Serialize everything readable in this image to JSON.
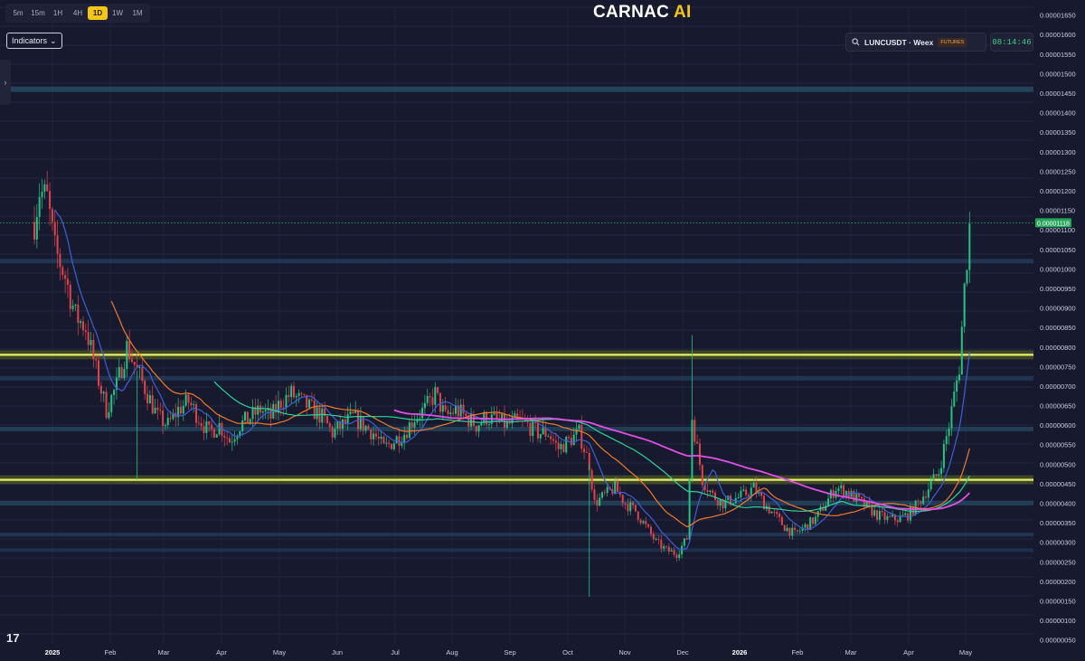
{
  "toolbar": {
    "timeframes": [
      "5m",
      "15m",
      "1H",
      "4H",
      "1D",
      "1W",
      "1M"
    ],
    "active": "1D",
    "indicators_label": "Indicators"
  },
  "brand": {
    "name": "CARNAC",
    "suffix": "AI"
  },
  "symbol": {
    "name": "LUNCUSDT · Weex",
    "badge": "FUTURES"
  },
  "clock": "08:14:46",
  "chart_data": {
    "type": "candlestick",
    "y_axis_labels": [
      "0.00001650",
      "0.00001600",
      "0.00001550",
      "0.00001500",
      "0.00001450",
      "0.00001400",
      "0.00001350",
      "0.00001300",
      "0.00001250",
      "0.00001200",
      "0.00001150",
      "0.00001100",
      "0.00001050",
      "0.00001000",
      "0.00000950",
      "0.00000900",
      "0.00000850",
      "0.00000800",
      "0.00000750",
      "0.00000700",
      "0.00000650",
      "0.00000600",
      "0.00000550",
      "0.00000500",
      "0.00000450",
      "0.00000400",
      "0.00000350",
      "0.00000300",
      "0.00000250",
      "0.00000200",
      "0.00000150",
      "0.00000100",
      "0.00000050"
    ],
    "x_axis_labels": [
      "2025",
      "Feb",
      "Mar",
      "Apr",
      "May",
      "Jun",
      "Jul",
      "Aug",
      "Sep",
      "Oct",
      "Nov",
      "Dec",
      "2026",
      "Feb",
      "Mar",
      "Apr",
      "May"
    ],
    "last_price": "0.00001118",
    "last_price_value": 1.118e-05,
    "ylim": [
      4e-07,
      1.67e-05
    ],
    "support_resistance_levels": [
      7.8e-06,
      4.6e-06
    ],
    "price_path": [
      [
        0,
        1.12e-05
      ],
      [
        2,
        1.2e-05
      ],
      [
        5,
        1.18e-05
      ],
      [
        8,
        1.05e-05
      ],
      [
        12,
        9.8e-06
      ],
      [
        16,
        8.8e-06
      ],
      [
        20,
        8.5e-06
      ],
      [
        24,
        7.4e-06
      ],
      [
        28,
        6.4e-06
      ],
      [
        32,
        7e-06
      ],
      [
        36,
        8e-06
      ],
      [
        40,
        7.4e-06
      ],
      [
        44,
        6.8e-06
      ],
      [
        48,
        6.2e-06
      ],
      [
        52,
        6e-06
      ],
      [
        56,
        6.4e-06
      ],
      [
        60,
        6.6e-06
      ],
      [
        64,
        6.2e-06
      ],
      [
        68,
        5.8e-06
      ],
      [
        72,
        6e-06
      ],
      [
        76,
        5.6e-06
      ],
      [
        80,
        6e-06
      ],
      [
        84,
        6.2e-06
      ],
      [
        88,
        6.4e-06
      ],
      [
        92,
        6.2e-06
      ],
      [
        96,
        6.6e-06
      ],
      [
        100,
        6.8e-06
      ],
      [
        104,
        6.6e-06
      ],
      [
        108,
        6.4e-06
      ],
      [
        112,
        6.2e-06
      ],
      [
        116,
        5.8e-06
      ],
      [
        120,
        6e-06
      ],
      [
        124,
        6.2e-06
      ],
      [
        128,
        6e-06
      ],
      [
        132,
        5.8e-06
      ],
      [
        136,
        5.4e-06
      ],
      [
        140,
        5.6e-06
      ],
      [
        144,
        5.8e-06
      ],
      [
        148,
        6.2e-06
      ],
      [
        152,
        6.4e-06
      ],
      [
        156,
        6.8e-06
      ],
      [
        160,
        6.2e-06
      ],
      [
        164,
        6.4e-06
      ],
      [
        168,
        6.2e-06
      ],
      [
        172,
        6e-06
      ],
      [
        176,
        6.2e-06
      ],
      [
        180,
        6.1e-06
      ],
      [
        184,
        6e-06
      ],
      [
        188,
        6.1e-06
      ],
      [
        192,
        6e-06
      ],
      [
        196,
        5.8e-06
      ],
      [
        200,
        5.8e-06
      ],
      [
        204,
        5.4e-06
      ],
      [
        208,
        5.6e-06
      ],
      [
        212,
        5.8e-06
      ],
      [
        216,
        5e-06
      ],
      [
        218,
        4e-06
      ],
      [
        222,
        4.2e-06
      ],
      [
        226,
        4.4e-06
      ],
      [
        230,
        4e-06
      ],
      [
        234,
        3.8e-06
      ],
      [
        238,
        3.4e-06
      ],
      [
        242,
        3e-06
      ],
      [
        246,
        2.8e-06
      ],
      [
        250,
        2.7e-06
      ],
      [
        254,
        3.1e-06
      ],
      [
        256,
        6.2e-06
      ],
      [
        260,
        4.6e-06
      ],
      [
        264,
        4.2e-06
      ],
      [
        268,
        4e-06
      ],
      [
        272,
        4.1e-06
      ],
      [
        276,
        4.2e-06
      ],
      [
        280,
        4.4e-06
      ],
      [
        284,
        4e-06
      ],
      [
        288,
        3.7e-06
      ],
      [
        292,
        3.4e-06
      ],
      [
        296,
        3.2e-06
      ],
      [
        300,
        3.4e-06
      ],
      [
        304,
        3.6e-06
      ],
      [
        308,
        4e-06
      ],
      [
        312,
        4.4e-06
      ],
      [
        316,
        4.3e-06
      ],
      [
        320,
        4.1e-06
      ],
      [
        324,
        3.9e-06
      ],
      [
        328,
        3.7e-06
      ],
      [
        332,
        3.6e-06
      ],
      [
        336,
        3.6e-06
      ],
      [
        340,
        3.7e-06
      ],
      [
        344,
        4e-06
      ],
      [
        348,
        4.4e-06
      ],
      [
        352,
        4.8e-06
      ],
      [
        356,
        6e-06
      ],
      [
        360,
        7.5e-06
      ],
      [
        362,
        9.5e-06
      ],
      [
        364,
        1.11e-05
      ]
    ],
    "moving_averages": [
      {
        "color": "#3f5fd8"
      },
      {
        "color": "#f07a2a"
      },
      {
        "color": "#2fd39a"
      },
      {
        "color": "#e24fe6"
      }
    ]
  }
}
